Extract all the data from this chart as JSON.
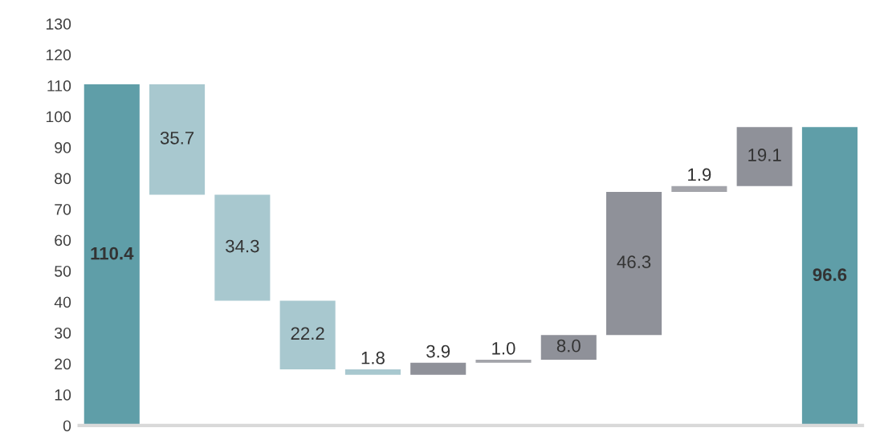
{
  "chart_data": {
    "type": "bar",
    "categories": [
      null,
      null,
      null,
      null,
      null,
      null,
      null,
      null,
      null,
      null,
      null,
      null
    ],
    "values": [
      110.4,
      35.7,
      34.3,
      22.2,
      1.8,
      3.9,
      1.0,
      8.0,
      46.3,
      1.9,
      19.1,
      96.6
    ],
    "base": [
      0,
      74.7,
      40.4,
      18.2,
      16.4,
      16.4,
      20.3,
      21.3,
      29.3,
      75.6,
      77.5,
      0
    ],
    "colors": [
      "#5f9ea8",
      "#a8c8cf",
      "#a8c8cf",
      "#a8c8cf",
      "#a8c8cf",
      "#8f9199",
      "#a3a4aa",
      "#8f9199",
      "#8f9199",
      "#a3a4aa",
      "#8f9199",
      "#5f9ea8"
    ],
    "value_labels": [
      "110.4",
      "35.7",
      "34.3",
      "22.2",
      "1.8",
      "3.9",
      "1.0",
      "8.0",
      "46.3",
      "1.9",
      "19.1",
      "96.6"
    ],
    "ylim": [
      0,
      130
    ],
    "yticks": [
      0,
      10,
      20,
      30,
      40,
      50,
      60,
      70,
      80,
      90,
      100,
      110,
      120,
      130
    ],
    "grid": false,
    "legend": false
  }
}
